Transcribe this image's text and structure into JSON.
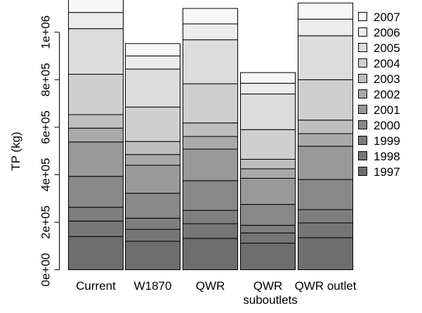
{
  "chart_data": {
    "type": "bar",
    "stacked": true,
    "title": "",
    "xlabel": "suboutlets",
    "ylabel": "TP (kg)",
    "ylim": [
      0,
      1150000
    ],
    "yticks": [
      0,
      200000,
      400000,
      600000,
      800000,
      1000000
    ],
    "ytick_labels": [
      "0e+00",
      "2e+05",
      "4e+05",
      "6e+05",
      "8e+05",
      "1e+06"
    ],
    "categories": [
      "Current",
      "W1870",
      "QWR",
      "QWR",
      "QWR outlet"
    ],
    "legend_position": "right",
    "grid": false,
    "series": [
      {
        "name": "1997",
        "color": "#6e6e6e",
        "values": [
          140000,
          120000,
          132000,
          112000,
          135000
        ]
      },
      {
        "name": "1998",
        "color": "#767676",
        "values": [
          65000,
          50000,
          62000,
          43000,
          62000
        ]
      },
      {
        "name": "1999",
        "color": "#7e7e7e",
        "values": [
          58000,
          47000,
          56000,
          32000,
          56000
        ]
      },
      {
        "name": "2000",
        "color": "#888888",
        "values": [
          130000,
          105000,
          125000,
          88000,
          127000
        ]
      },
      {
        "name": "2001",
        "color": "#999999",
        "values": [
          145000,
          118000,
          133000,
          110000,
          140000
        ]
      },
      {
        "name": "2002",
        "color": "#a9a9a9",
        "values": [
          58000,
          45000,
          53000,
          40000,
          53000
        ]
      },
      {
        "name": "2003",
        "color": "#bebebe",
        "values": [
          57000,
          55000,
          57000,
          40000,
          57000
        ]
      },
      {
        "name": "2004",
        "color": "#cfcfcf",
        "values": [
          170000,
          145000,
          165000,
          125000,
          170000
        ]
      },
      {
        "name": "2005",
        "color": "#dcdcdc",
        "values": [
          192000,
          160000,
          185000,
          150000,
          185000
        ]
      },
      {
        "name": "2006",
        "color": "#ececec",
        "values": [
          68000,
          55000,
          67000,
          45000,
          70000
        ]
      },
      {
        "name": "2007",
        "color": "#f7f7f7",
        "values": [
          72000,
          52000,
          65000,
          45000,
          68000
        ]
      }
    ]
  }
}
